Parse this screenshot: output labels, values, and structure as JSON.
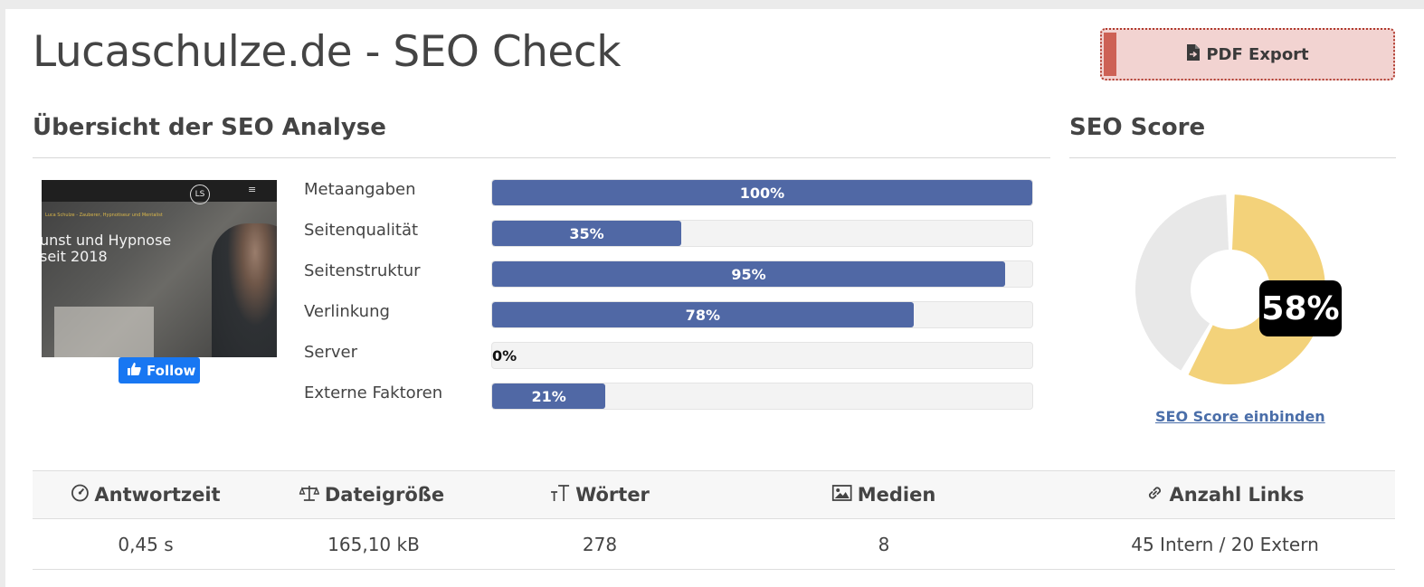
{
  "page": {
    "title": "Lucaschulze.de - SEO Check",
    "pdf_export_label": "PDF Export"
  },
  "overview": {
    "title": "Übersicht der SEO Analyse",
    "thumbnail": {
      "hero_text": "unst und Hypnose\nseit 2018",
      "logo_text": "LS",
      "small_text": "Luca Schulze - Zauberer, Hypnotiseur und Mentalist"
    },
    "follow_button": "Follow",
    "bars": [
      {
        "label": "Metaangaben",
        "value": 100,
        "value_label": "100%"
      },
      {
        "label": "Seitenqualität",
        "value": 35,
        "value_label": "35%"
      },
      {
        "label": "Seitenstruktur",
        "value": 95,
        "value_label": "95%"
      },
      {
        "label": "Verlinkung",
        "value": 78,
        "value_label": "78%"
      },
      {
        "label": "Server",
        "value": 0,
        "value_label": "0%"
      },
      {
        "label": "Externe Faktoren",
        "value": 21,
        "value_label": "21%"
      }
    ]
  },
  "score": {
    "title": "SEO Score",
    "value": 58,
    "value_label": "58%",
    "link_label": "SEO Score einbinden",
    "fill_color": "#f3d27a",
    "rest_color": "#e8e8e8"
  },
  "stats": {
    "headers": [
      {
        "icon": "gauge-icon",
        "label": "Antwortzeit"
      },
      {
        "icon": "scale-icon",
        "label": "Dateigröße"
      },
      {
        "icon": "text-size-icon",
        "label": "Wörter"
      },
      {
        "icon": "image-icon",
        "label": "Medien"
      },
      {
        "icon": "link-icon",
        "label": "Anzahl Links"
      }
    ],
    "values": [
      "0,45 s",
      "165,10 kB",
      "278",
      "8",
      "45 Intern / 20 Extern"
    ]
  },
  "colors": {
    "bar_fill": "#5068a5",
    "pdf_button_bg": "#f2d3d1",
    "pdf_button_accent": "#cd6155",
    "follow_button": "#1877f2"
  }
}
